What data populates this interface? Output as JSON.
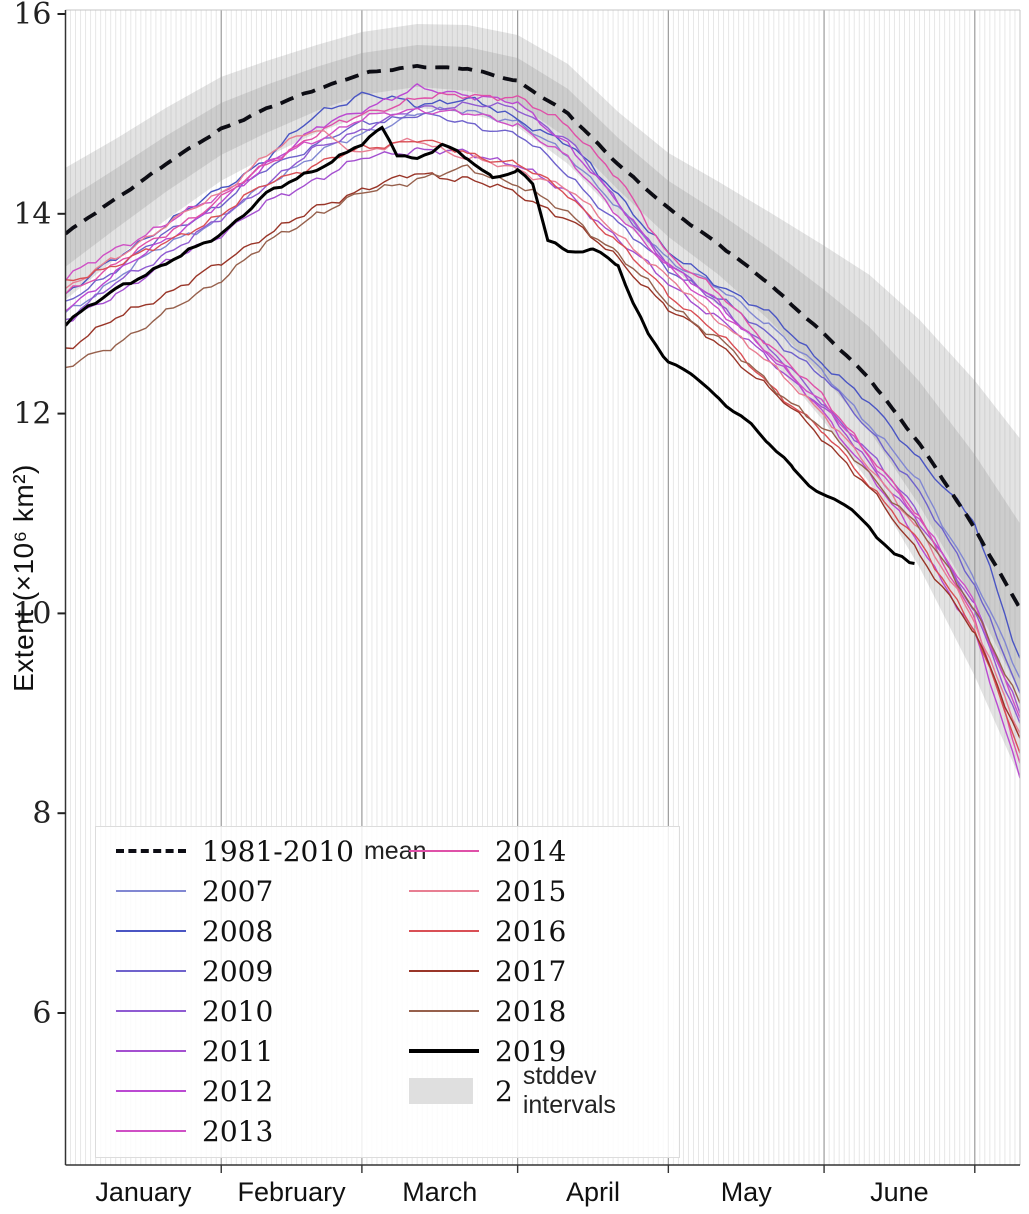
{
  "chart_data": {
    "type": "line",
    "title": "",
    "ylabel": "Extent (×10⁶ km²)",
    "ylim": [
      4.45,
      16.05
    ],
    "yticks": [
      16,
      14,
      12,
      10,
      8,
      6
    ],
    "grid": {
      "daily_vertical_lines": true,
      "month_boundary_lines": true
    },
    "x_axis": {
      "total_days": 190,
      "month_boundaries": [
        31,
        59,
        90,
        120,
        151,
        181
      ],
      "months": [
        {
          "label": "January",
          "mid_day": 15.5
        },
        {
          "label": "February",
          "mid_day": 45
        },
        {
          "label": "March",
          "mid_day": 74.5
        },
        {
          "label": "April",
          "mid_day": 105
        },
        {
          "label": "May",
          "mid_day": 135.5
        },
        {
          "label": "June",
          "mid_day": 166
        }
      ]
    },
    "sample_days": [
      0,
      10,
      20,
      31,
      40,
      50,
      59,
      70,
      80,
      90,
      100,
      110,
      120,
      130,
      140,
      151,
      160,
      170,
      181,
      190
    ],
    "mean_series": {
      "label": "1981-2010",
      "suffix": "mean",
      "style": "dashed",
      "color": "#0d0d14",
      "values": [
        13.8,
        14.15,
        14.5,
        14.85,
        15.05,
        15.25,
        15.4,
        15.48,
        15.45,
        15.33,
        15.0,
        14.5,
        14.05,
        13.7,
        13.3,
        12.8,
        12.35,
        11.7,
        10.85,
        10.05
      ]
    },
    "band": {
      "label": "2",
      "suffix": "stddev intervals",
      "sigma": [
        0.33,
        0.3,
        0.28,
        0.26,
        0.24,
        0.22,
        0.21,
        0.21,
        0.22,
        0.23,
        0.25,
        0.26,
        0.28,
        0.31,
        0.36,
        0.44,
        0.52,
        0.62,
        0.74,
        0.85
      ],
      "inner_color": "#cdcdcd",
      "outer_color": "#e3e3e3",
      "patch_color": "#dfdfdf"
    },
    "series": [
      {
        "label": "2007",
        "color": "#8187d2",
        "values": [
          13.0,
          13.35,
          13.7,
          13.95,
          14.3,
          14.6,
          14.8,
          15.0,
          15.05,
          14.9,
          14.6,
          14.05,
          13.55,
          13.25,
          12.9,
          12.4,
          11.9,
          11.3,
          10.35,
          9.35
        ]
      },
      {
        "label": "2008",
        "color": "#4a55c3",
        "values": [
          13.2,
          13.55,
          13.9,
          14.25,
          14.55,
          15.0,
          15.2,
          15.1,
          15.15,
          14.95,
          14.7,
          14.2,
          13.6,
          13.3,
          13.0,
          12.5,
          12.1,
          11.55,
          10.9,
          9.55
        ]
      },
      {
        "label": "2009",
        "color": "#6f62cc",
        "values": [
          13.1,
          13.45,
          13.8,
          14.1,
          14.45,
          14.7,
          14.9,
          15.0,
          14.9,
          14.8,
          14.4,
          13.9,
          13.45,
          13.15,
          12.8,
          12.35,
          11.85,
          11.2,
          10.3,
          9.2
        ]
      },
      {
        "label": "2010",
        "color": "#8f5bd2",
        "values": [
          12.95,
          13.3,
          13.6,
          13.95,
          14.3,
          14.65,
          14.85,
          15.05,
          15.1,
          15.05,
          14.75,
          14.1,
          13.5,
          13.1,
          12.65,
          12.1,
          11.6,
          11.0,
          10.0,
          8.9
        ]
      },
      {
        "label": "2011",
        "color": "#a44fd0",
        "values": [
          12.9,
          13.2,
          13.5,
          13.8,
          14.1,
          14.35,
          14.55,
          14.65,
          14.6,
          14.5,
          14.2,
          13.75,
          13.3,
          12.95,
          12.55,
          12.05,
          11.5,
          10.9,
          10.1,
          9.0
        ]
      },
      {
        "label": "2012",
        "color": "#bb49d2",
        "values": [
          13.05,
          13.4,
          13.75,
          14.1,
          14.5,
          14.85,
          15.05,
          15.25,
          15.2,
          15.1,
          14.7,
          14.1,
          13.5,
          13.1,
          12.6,
          12.0,
          11.4,
          10.7,
          9.8,
          8.35
        ]
      },
      {
        "label": "2013",
        "color": "#cf4fc5",
        "values": [
          13.35,
          13.65,
          13.9,
          14.2,
          14.5,
          14.75,
          14.95,
          15.05,
          15.0,
          14.9,
          14.55,
          14.0,
          13.45,
          13.05,
          12.6,
          12.1,
          11.55,
          10.95,
          10.1,
          8.95
        ]
      },
      {
        "label": "2014",
        "color": "#df50a8",
        "values": [
          13.2,
          13.5,
          13.8,
          14.15,
          14.5,
          14.8,
          15.0,
          15.15,
          15.2,
          15.15,
          14.9,
          14.35,
          13.6,
          13.2,
          12.7,
          12.15,
          11.6,
          10.95,
          9.95,
          8.5
        ]
      },
      {
        "label": "2015",
        "color": "#e87e92",
        "values": [
          13.25,
          13.55,
          13.9,
          14.2,
          14.6,
          14.85,
          14.6,
          14.75,
          14.55,
          14.45,
          14.25,
          13.8,
          13.35,
          12.95,
          12.5,
          12.0,
          11.45,
          10.85,
          9.9,
          8.8
        ]
      },
      {
        "label": "2016",
        "color": "#d94f55",
        "values": [
          13.3,
          13.5,
          13.7,
          14.0,
          14.3,
          14.5,
          14.65,
          14.75,
          14.6,
          14.5,
          14.2,
          13.7,
          13.2,
          12.8,
          12.3,
          11.8,
          11.3,
          10.7,
          9.85,
          8.6
        ]
      },
      {
        "label": "2017",
        "color": "#993528",
        "values": [
          12.65,
          12.95,
          13.2,
          13.5,
          13.8,
          14.05,
          14.25,
          14.4,
          14.35,
          14.2,
          13.95,
          13.55,
          13.05,
          12.7,
          12.25,
          11.75,
          11.25,
          10.6,
          9.8,
          8.75
        ]
      },
      {
        "label": "2018",
        "color": "#96604c",
        "values": [
          12.45,
          12.7,
          13.0,
          13.35,
          13.7,
          14.0,
          14.2,
          14.35,
          14.45,
          14.3,
          14.0,
          13.6,
          13.1,
          12.75,
          12.3,
          11.85,
          11.4,
          10.85,
          10.05,
          9.1
        ]
      },
      {
        "label": "2019",
        "color": "#000000",
        "width": 3.0,
        "days": [
          0,
          10,
          20,
          31,
          40,
          50,
          59,
          63,
          66,
          70,
          75,
          80,
          85,
          90,
          93,
          96,
          100,
          105,
          110,
          113,
          116,
          120,
          125,
          130,
          135,
          140,
          145,
          150,
          155,
          160,
          165,
          169
        ],
        "values": [
          12.9,
          13.25,
          13.5,
          13.8,
          14.2,
          14.45,
          14.7,
          14.85,
          14.6,
          14.55,
          14.7,
          14.55,
          14.35,
          14.45,
          14.3,
          13.75,
          13.6,
          13.65,
          13.5,
          13.1,
          12.8,
          12.5,
          12.4,
          12.15,
          11.95,
          11.7,
          11.45,
          11.2,
          11.1,
          10.85,
          10.6,
          10.5
        ]
      }
    ],
    "legend": {
      "position": "lower left",
      "columns": [
        [
          "mean",
          "2007",
          "2008",
          "2009",
          "2010",
          "2011",
          "2012",
          "2013"
        ],
        [
          "2014",
          "2015",
          "2016",
          "2017",
          "2018",
          "2019",
          "band"
        ]
      ]
    }
  }
}
